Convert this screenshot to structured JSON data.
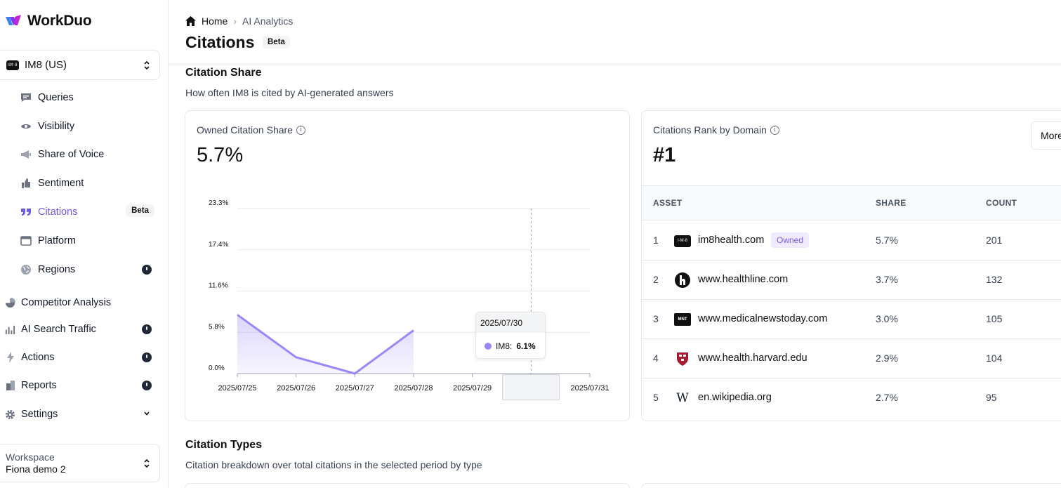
{
  "brand": {
    "name": "WorkDuo"
  },
  "sidebar": {
    "account": {
      "badge": "IM·8",
      "label": "IM8 (US)"
    },
    "sub_items": [
      {
        "label": "Queries",
        "icon": "chat-bubble-icon"
      },
      {
        "label": "Visibility",
        "icon": "eye-icon"
      },
      {
        "label": "Share of Voice",
        "icon": "megaphone-icon"
      },
      {
        "label": "Sentiment",
        "icon": "thumbs-up-icon"
      },
      {
        "label": "Citations",
        "icon": "quote-icon",
        "badge": "Beta",
        "active": true
      },
      {
        "label": "Platform",
        "icon": "window-icon"
      },
      {
        "label": "Regions",
        "icon": "globe-icon"
      }
    ],
    "top_items": [
      {
        "label": "Competitor Analysis",
        "icon": "pie-chart-icon"
      },
      {
        "label": "AI Search Traffic",
        "icon": "bar-chart-icon"
      },
      {
        "label": "Actions",
        "icon": "lightning-icon"
      },
      {
        "label": "Reports",
        "icon": "document-icon"
      },
      {
        "label": "Settings",
        "icon": "gear-icon"
      }
    ],
    "workspace": {
      "label": "Workspace",
      "name": "Fiona demo 2"
    }
  },
  "breadcrumb": {
    "home": "Home",
    "current": "AI Analytics"
  },
  "page": {
    "title": "Citations",
    "badge": "Beta"
  },
  "citation_share": {
    "title": "Citation Share",
    "description": "How often IM8 is cited by AI-generated answers"
  },
  "owned_card": {
    "label": "Owned Citation Share",
    "value": "5.7%",
    "tooltip": {
      "date": "2025/07/30",
      "series": "IM8:",
      "value": "6.1%"
    }
  },
  "chart_data": {
    "type": "area",
    "x": [
      "2025/07/25",
      "2025/07/26",
      "2025/07/27",
      "2025/07/28",
      "2025/07/29",
      "2025/07/30",
      "2025/07/31"
    ],
    "series": [
      {
        "name": "IM8",
        "values": [
          8.3,
          2.3,
          0.0,
          6.1,
          null,
          6.1,
          null
        ]
      }
    ],
    "y_ticks": [
      "0.0%",
      "5.8%",
      "11.6%",
      "17.4%",
      "23.3%"
    ],
    "ylim": [
      0,
      23.3
    ],
    "grid": true,
    "color": "#9b87f5",
    "highlighted_x": "2025/07/30"
  },
  "rank_card": {
    "label": "Citations Rank by Domain",
    "value": "#1",
    "more_label": "More",
    "columns": [
      "ASSET",
      "SHARE",
      "COUNT"
    ],
    "owned_label": "Owned",
    "rows": [
      {
        "rank": "1",
        "domain": "im8health.com",
        "share": "5.7%",
        "count": "201",
        "owned": true,
        "icon": "im8-logo-icon"
      },
      {
        "rank": "2",
        "domain": "www.healthline.com",
        "share": "3.7%",
        "count": "132",
        "icon": "healthline-logo-icon"
      },
      {
        "rank": "3",
        "domain": "www.medicalnewstoday.com",
        "share": "3.0%",
        "count": "105",
        "icon": "mnt-logo-icon"
      },
      {
        "rank": "4",
        "domain": "www.health.harvard.edu",
        "share": "2.9%",
        "count": "104",
        "icon": "harvard-shield-icon"
      },
      {
        "rank": "5",
        "domain": "en.wikipedia.org",
        "share": "2.7%",
        "count": "95",
        "icon": "wikipedia-logo-icon"
      }
    ]
  },
  "citation_types": {
    "title": "Citation Types",
    "description": "Citation breakdown over total citations in the selected period by type"
  },
  "colors": {
    "accent": "#6d5ce7",
    "series": "#9b87f5"
  }
}
